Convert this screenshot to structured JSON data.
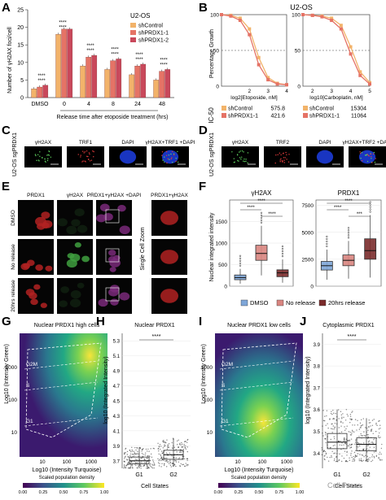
{
  "panels": {
    "A": {
      "letter": "A",
      "ylabel": "Number of γH2AX foci/cell",
      "xlabel": "Release time after etoposide treatment (hrs)",
      "legend_title": "U2-OS",
      "sig": "****",
      "chart_data": {
        "type": "bar",
        "categories": [
          "DMSO",
          "0",
          "4",
          "8",
          "24",
          "48"
        ],
        "ylim": [
          0,
          25
        ],
        "yticks": [
          0,
          5,
          10,
          15,
          20,
          25
        ],
        "series": [
          {
            "name": "shControl",
            "color": "#f2b36a",
            "values": [
              2.5,
              18.0,
              9.0,
              8.0,
              6.5,
              5.0
            ]
          },
          {
            "name": "shPRDX1-1",
            "color": "#e57366",
            "values": [
              3.0,
              19.5,
              11.5,
              10.5,
              9.0,
              7.5
            ]
          },
          {
            "name": "shPRDX1-2",
            "color": "#c9485b",
            "values": [
              3.5,
              19.5,
              12.0,
              11.0,
              9.5,
              8.0
            ]
          }
        ]
      }
    },
    "B": {
      "letter": "B",
      "title": "U2-OS",
      "ylabel": "Percentage Growth",
      "ic50_label": "IC-50",
      "chart_data": [
        {
          "type": "line",
          "xlabel": "log2[Etoposide, nM]",
          "xticks": [
            2,
            3,
            4
          ],
          "ylim": [
            0,
            100
          ],
          "yticks": [
            0,
            50,
            100
          ],
          "x": [
            0.5,
            1.0,
            1.5,
            2.0,
            2.5,
            3.0,
            3.5,
            4.0
          ],
          "series": [
            {
              "name": "shControl",
              "color": "#f2b36a",
              "values": [
                100,
                99,
                95,
                80,
                40,
                12,
                4,
                2
              ]
            },
            {
              "name": "shPRDX1-1",
              "color": "#e57366",
              "values": [
                100,
                98,
                92,
                72,
                30,
                9,
                3,
                2
              ]
            }
          ],
          "ic50": [
            {
              "name": "shControl",
              "value": "575.8"
            },
            {
              "name": "shPRDX1-1",
              "value": "421.6"
            }
          ]
        },
        {
          "type": "line",
          "xlabel": "log10[Carboplatin, nM]",
          "xticks": [
            2,
            3,
            4,
            5
          ],
          "ylim": [
            0,
            100
          ],
          "yticks": [
            0,
            50,
            100
          ],
          "x": [
            1.5,
            2.0,
            2.5,
            3.0,
            3.5,
            4.0,
            4.5,
            5.0
          ],
          "series": [
            {
              "name": "shControl",
              "color": "#f2b36a",
              "values": [
                100,
                99,
                98,
                95,
                85,
                55,
                20,
                5
              ]
            },
            {
              "name": "shPRDX1-1",
              "color": "#e57366",
              "values": [
                100,
                99,
                97,
                92,
                80,
                45,
                15,
                3
              ]
            }
          ],
          "ic50": [
            {
              "name": "shControl",
              "value": "15304"
            },
            {
              "name": "shPRDX1-1",
              "value": "11064"
            }
          ]
        }
      ]
    },
    "C": {
      "letter": "C",
      "row_label": "U2-OS sgPRDX1",
      "columns": [
        "γH2AX",
        "TRF1",
        "DAPI",
        "γH2AX+TRF1 +DAPI"
      ]
    },
    "D": {
      "letter": "D",
      "row_label": "U2-OS sgPRDX1",
      "columns": [
        "γH2AX",
        "TRF2",
        "DAPI",
        "γH2AX+TRF2 +DAPI"
      ]
    },
    "E": {
      "letter": "E",
      "columns": [
        "PRDX1",
        "γH2AX",
        "PRDX1+γH2AX +DAPI",
        "PRDX1+γH2AX"
      ],
      "rows": [
        "DMSO",
        "No release",
        "20hrs release"
      ],
      "side_label": "Single Cell Zoom"
    },
    "F": {
      "letter": "F",
      "ylabel": "Nuclear integrated intensity",
      "sig": "****",
      "sig_small": "***",
      "legend": [
        {
          "name": "DMSO",
          "color": "#7ea6d8"
        },
        {
          "name": "No release",
          "color": "#d98580"
        },
        {
          "name": "20hrs release",
          "color": "#7a2b2b"
        }
      ],
      "chart_data": [
        {
          "type": "box",
          "title": "γH2AX",
          "ylim": [
            0,
            2000
          ],
          "yticks": [
            0,
            500,
            1000,
            1500
          ],
          "series": [
            {
              "name": "DMSO",
              "median": 200,
              "q1": 150,
              "q3": 260,
              "whisker_low": 60,
              "whisker_high": 400
            },
            {
              "name": "No release",
              "median": 760,
              "q1": 600,
              "q3": 950,
              "whisker_low": 250,
              "whisker_high": 1400
            },
            {
              "name": "20hrs release",
              "median": 310,
              "q1": 220,
              "q3": 380,
              "whisker_low": 80,
              "whisker_high": 620
            }
          ]
        },
        {
          "type": "box",
          "title": "PRDX1",
          "ylim": [
            0,
            8000
          ],
          "yticks": [
            0,
            2500,
            5000,
            7500
          ],
          "series": [
            {
              "name": "DMSO",
              "median": 1900,
              "q1": 1500,
              "q3": 2300,
              "whisker_low": 600,
              "whisker_high": 3400
            },
            {
              "name": "No release",
              "median": 2400,
              "q1": 1900,
              "q3": 2900,
              "whisker_low": 700,
              "whisker_high": 4200
            },
            {
              "name": "20hrs release",
              "median": 3300,
              "q1": 2500,
              "q3": 4400,
              "whisker_low": 800,
              "whisker_high": 6600
            }
          ]
        }
      ]
    },
    "G": {
      "letter": "G",
      "title": "Nuclear PRDX1 high cells",
      "ylabel": "Log10 (Intensity Green)",
      "xlabel": "Log10 (Intensity Turquoise)",
      "xticks": [
        "10",
        "100",
        "1000"
      ],
      "yticks": [
        "10",
        "100",
        "1000"
      ],
      "gates": [
        "G2M",
        "S",
        "G1"
      ],
      "colorbar_label": "Scaled population density",
      "colorbar_ticks": [
        "0.00",
        "0.25",
        "0.50",
        "0.75",
        "1.00"
      ]
    },
    "H": {
      "letter": "H",
      "title": "Nuclear PRDX1",
      "ylabel": "log10 (Integrated Intensity)",
      "xlabel": "Cell States",
      "sig": "****",
      "chart_data": {
        "type": "box",
        "categories": [
          "G1",
          "G2"
        ],
        "yticks": [
          3.7,
          3.9,
          4.1,
          4.3,
          4.5,
          4.7,
          4.9,
          5.1,
          5.3
        ],
        "ylim": [
          3.6,
          5.4
        ],
        "series": [
          {
            "name": "G1",
            "median": 3.7,
            "q1": 3.66,
            "q3": 3.75,
            "whisker_low": 3.6,
            "whisker_high": 3.88
          },
          {
            "name": "G2",
            "median": 3.78,
            "q1": 3.72,
            "q3": 3.84,
            "whisker_low": 3.62,
            "whisker_high": 4.0
          }
        ]
      }
    },
    "I": {
      "letter": "I",
      "title": "Nuclear PRDX1 low cells",
      "ylabel": "Log10 (Intensity Green)",
      "xlabel": "Log10 (Intensity Turquoise)",
      "xticks": [
        "10",
        "100",
        "1000"
      ],
      "yticks": [
        "10",
        "100",
        "1000"
      ],
      "gates": [
        "G2M",
        "S",
        "G1"
      ],
      "colorbar_label": "Scaled population density",
      "colorbar_ticks": [
        "0.00",
        "0.25",
        "0.50",
        "0.75",
        "1.00"
      ]
    },
    "J": {
      "letter": "J",
      "title": "Cytoplasmic PRDX1",
      "ylabel": "log10 (Integrated Intensity)",
      "xlabel": "Cell States",
      "sig": "****",
      "chart_data": {
        "type": "box",
        "categories": [
          "G1",
          "G2"
        ],
        "yticks": [
          3.4,
          3.5,
          3.6,
          3.7,
          3.8,
          3.9
        ],
        "ylim": [
          3.33,
          3.95
        ],
        "series": [
          {
            "name": "G1",
            "median": 3.45,
            "q1": 3.42,
            "q3": 3.49,
            "whisker_low": 3.36,
            "whisker_high": 3.6
          },
          {
            "name": "G2",
            "median": 3.44,
            "q1": 3.41,
            "q3": 3.47,
            "whisker_low": 3.36,
            "whisker_high": 3.56
          }
        ]
      }
    }
  },
  "watermark": "Cell Press"
}
